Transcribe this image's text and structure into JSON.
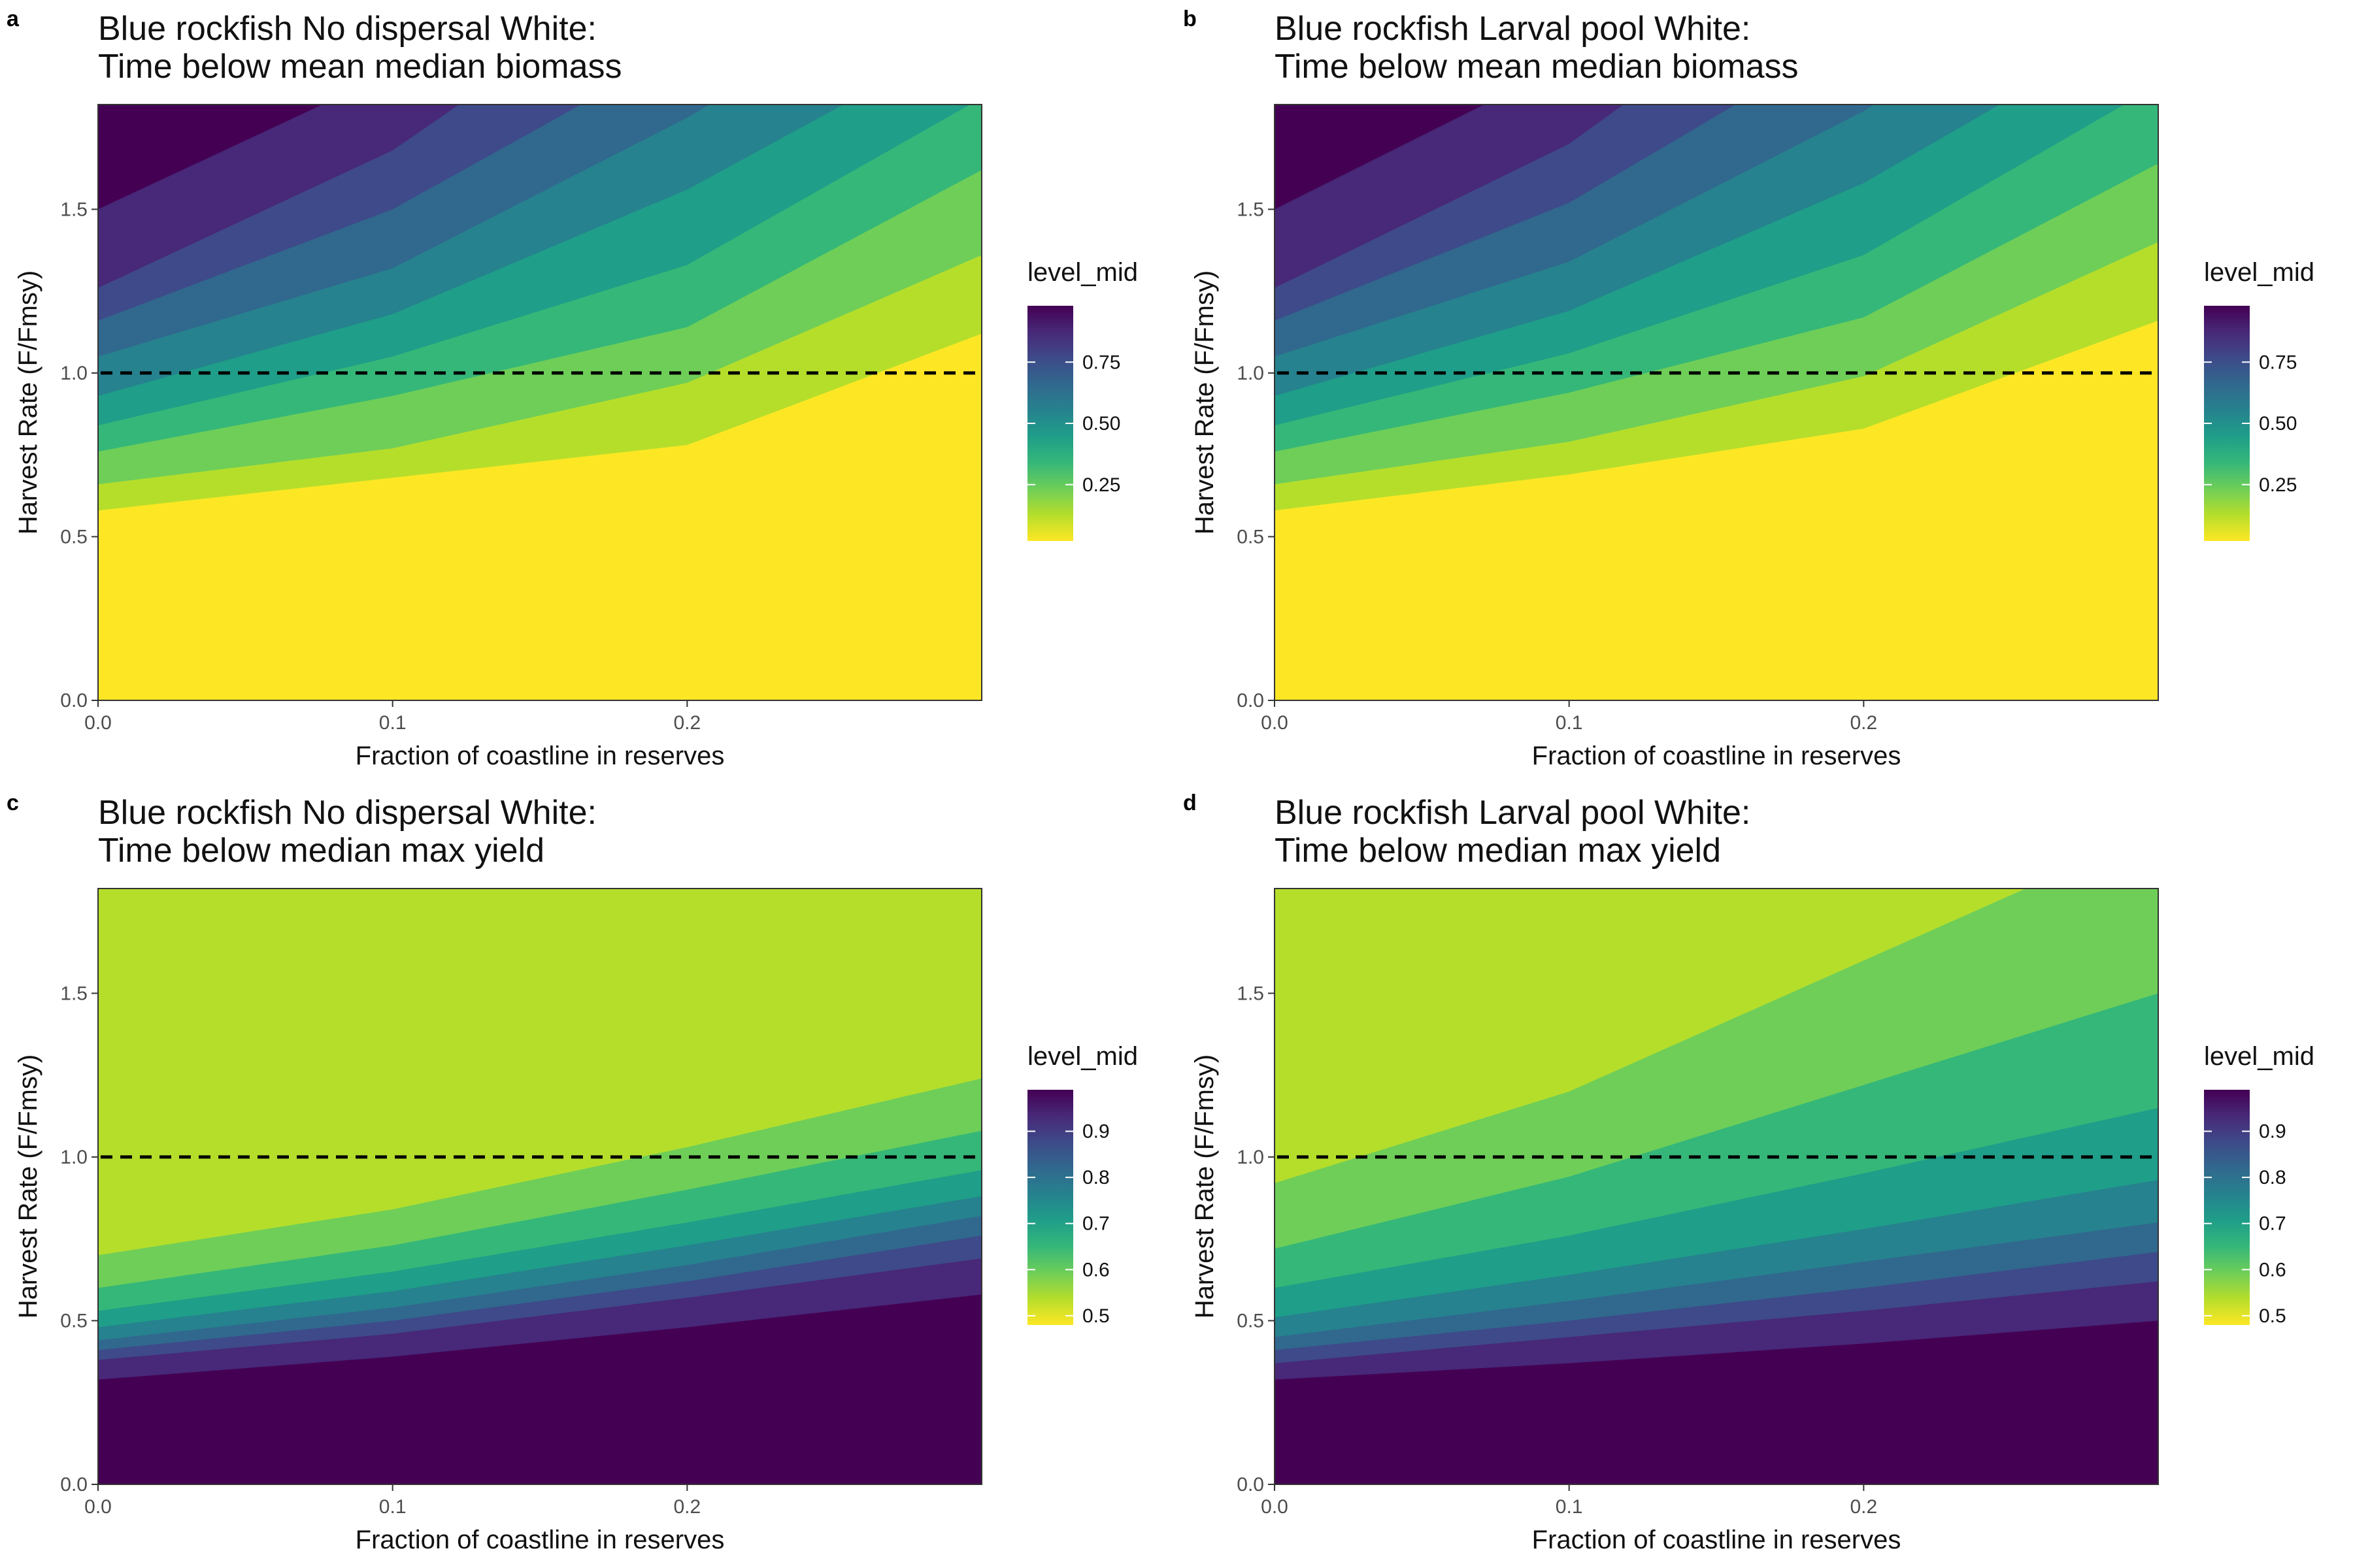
{
  "colors": {
    "viridis": [
      "#440154",
      "#482878",
      "#3e4a89",
      "#31688e",
      "#26828e",
      "#1f9e89",
      "#35b779",
      "#6ece58",
      "#b5de2b",
      "#fde725"
    ],
    "dashed_line": "#000000",
    "panel_border": "#333333"
  },
  "chart_data": [
    {
      "type": "heatmap",
      "tag": "a",
      "title": "Blue rockfish No dispersal White:",
      "subtitle": "Time below mean median biomass",
      "xlabel": "Fraction of coastline in reserves",
      "ylabel": "Harvest Rate (F/Fmsy)",
      "xlim": [
        0,
        0.3
      ],
      "ylim": [
        0,
        1.82
      ],
      "xticks": [
        0.0,
        0.1,
        0.2
      ],
      "xtick_labels": [
        "0.0",
        "0.1",
        "0.2"
      ],
      "yticks": [
        0.0,
        0.5,
        1.0,
        1.5
      ],
      "ytick_labels": [
        "0.0",
        "0.5",
        "1.0",
        "1.5"
      ],
      "reference_line": {
        "y": 1.0,
        "style": "dashed"
      },
      "legend": {
        "title": "level_mid",
        "min": 0.02,
        "max": 0.98,
        "ticks": [
          0.25,
          0.5,
          0.75
        ],
        "tick_labels": [
          "0.25",
          "0.50",
          "0.75"
        ]
      },
      "contour_boundaries": [
        {
          "x": [
            0,
            0.1,
            0.2,
            0.3
          ],
          "y": [
            0.58,
            0.68,
            0.78,
            1.12
          ]
        },
        {
          "x": [
            0,
            0.1,
            0.2,
            0.3
          ],
          "y": [
            0.66,
            0.77,
            0.97,
            1.36
          ]
        },
        {
          "x": [
            0,
            0.1,
            0.2,
            0.3
          ],
          "y": [
            0.76,
            0.93,
            1.14,
            1.62
          ]
        },
        {
          "x": [
            0,
            0.1,
            0.2,
            0.3
          ],
          "y": [
            0.84,
            1.05,
            1.33,
            1.84
          ]
        },
        {
          "x": [
            0,
            0.1,
            0.2,
            0.3
          ],
          "y": [
            0.93,
            1.18,
            1.56,
            2.05
          ]
        },
        {
          "x": [
            0,
            0.1,
            0.2,
            0.3
          ],
          "y": [
            1.05,
            1.32,
            1.78,
            2.3
          ]
        },
        {
          "x": [
            0,
            0.1,
            0.2,
            0.3
          ],
          "y": [
            1.16,
            1.5,
            2.0,
            2.6
          ]
        },
        {
          "x": [
            0,
            0.1,
            0.2,
            0.3
          ],
          "y": [
            1.26,
            1.68,
            2.3,
            2.9
          ]
        },
        {
          "x": [
            0,
            0.1,
            0.2,
            0.3
          ],
          "y": [
            1.5,
            1.92,
            2.6,
            3.2
          ]
        }
      ]
    },
    {
      "type": "heatmap",
      "tag": "b",
      "title": "Blue rockfish Larval pool White:",
      "subtitle": "Time below mean median biomass",
      "xlabel": "Fraction of coastline in reserves",
      "ylabel": "Harvest Rate (F/Fmsy)",
      "xlim": [
        0,
        0.3
      ],
      "ylim": [
        0,
        1.82
      ],
      "xticks": [
        0.0,
        0.1,
        0.2
      ],
      "xtick_labels": [
        "0.0",
        "0.1",
        "0.2"
      ],
      "yticks": [
        0.0,
        0.5,
        1.0,
        1.5
      ],
      "ytick_labels": [
        "0.0",
        "0.5",
        "1.0",
        "1.5"
      ],
      "reference_line": {
        "y": 1.0,
        "style": "dashed"
      },
      "legend": {
        "title": "level_mid",
        "min": 0.02,
        "max": 0.98,
        "ticks": [
          0.25,
          0.5,
          0.75
        ],
        "tick_labels": [
          "0.25",
          "0.50",
          "0.75"
        ]
      },
      "contour_boundaries": [
        {
          "x": [
            0,
            0.1,
            0.2,
            0.3
          ],
          "y": [
            0.58,
            0.69,
            0.83,
            1.16
          ]
        },
        {
          "x": [
            0,
            0.1,
            0.2,
            0.3
          ],
          "y": [
            0.66,
            0.79,
            0.99,
            1.4
          ]
        },
        {
          "x": [
            0,
            0.1,
            0.2,
            0.3
          ],
          "y": [
            0.76,
            0.94,
            1.17,
            1.64
          ]
        },
        {
          "x": [
            0,
            0.1,
            0.2,
            0.3
          ],
          "y": [
            0.84,
            1.06,
            1.36,
            1.88
          ]
        },
        {
          "x": [
            0,
            0.1,
            0.2,
            0.3
          ],
          "y": [
            0.93,
            1.19,
            1.58,
            2.1
          ]
        },
        {
          "x": [
            0,
            0.1,
            0.2,
            0.3
          ],
          "y": [
            1.05,
            1.34,
            1.8,
            2.35
          ]
        },
        {
          "x": [
            0,
            0.1,
            0.2,
            0.3
          ],
          "y": [
            1.16,
            1.52,
            2.05,
            2.65
          ]
        },
        {
          "x": [
            0,
            0.1,
            0.2,
            0.3
          ],
          "y": [
            1.26,
            1.7,
            2.35,
            2.95
          ]
        },
        {
          "x": [
            0,
            0.1,
            0.2,
            0.3
          ],
          "y": [
            1.5,
            1.95,
            2.65,
            3.25
          ]
        }
      ]
    },
    {
      "type": "heatmap",
      "tag": "c",
      "title": "Blue rockfish No dispersal White:",
      "subtitle": "Time below median max yield",
      "xlabel": "Fraction of coastline in reserves",
      "ylabel": "Harvest Rate (F/Fmsy)",
      "xlim": [
        0,
        0.3
      ],
      "ylim": [
        0,
        1.82
      ],
      "xticks": [
        0.0,
        0.1,
        0.2
      ],
      "xtick_labels": [
        "0.0",
        "0.1",
        "0.2"
      ],
      "yticks": [
        0.0,
        0.5,
        1.0,
        1.5
      ],
      "ytick_labels": [
        "0.0",
        "0.5",
        "1.0",
        "1.5"
      ],
      "reference_line": {
        "y": 1.0,
        "style": "dashed"
      },
      "legend": {
        "title": "level_mid",
        "min": 0.48,
        "max": 0.99,
        "ticks": [
          0.5,
          0.6,
          0.7,
          0.8,
          0.9
        ],
        "tick_labels": [
          "0.5",
          "0.6",
          "0.7",
          "0.8",
          "0.9"
        ]
      },
      "contour_boundaries": [
        {
          "x": [
            0,
            0.1,
            0.2,
            0.3
          ],
          "y": [
            0.32,
            0.39,
            0.48,
            0.58
          ]
        },
        {
          "x": [
            0,
            0.1,
            0.2,
            0.3
          ],
          "y": [
            0.38,
            0.46,
            0.57,
            0.69
          ]
        },
        {
          "x": [
            0,
            0.1,
            0.2,
            0.3
          ],
          "y": [
            0.41,
            0.5,
            0.62,
            0.76
          ]
        },
        {
          "x": [
            0,
            0.1,
            0.2,
            0.3
          ],
          "y": [
            0.44,
            0.54,
            0.67,
            0.82
          ]
        },
        {
          "x": [
            0,
            0.1,
            0.2,
            0.3
          ],
          "y": [
            0.48,
            0.59,
            0.73,
            0.88
          ]
        },
        {
          "x": [
            0,
            0.1,
            0.2,
            0.3
          ],
          "y": [
            0.53,
            0.65,
            0.8,
            0.96
          ]
        },
        {
          "x": [
            0,
            0.1,
            0.2,
            0.3
          ],
          "y": [
            0.6,
            0.73,
            0.9,
            1.08
          ]
        },
        {
          "x": [
            0,
            0.1,
            0.2,
            0.3
          ],
          "y": [
            0.7,
            0.84,
            1.03,
            1.24
          ]
        }
      ]
    },
    {
      "type": "heatmap",
      "tag": "d",
      "title": "Blue rockfish Larval pool White:",
      "subtitle": "Time below median max yield",
      "xlabel": "Fraction of coastline in reserves",
      "ylabel": "Harvest Rate (F/Fmsy)",
      "xlim": [
        0,
        0.3
      ],
      "ylim": [
        0,
        1.82
      ],
      "xticks": [
        0.0,
        0.1,
        0.2
      ],
      "xtick_labels": [
        "0.0",
        "0.1",
        "0.2"
      ],
      "yticks": [
        0.0,
        0.5,
        1.0,
        1.5
      ],
      "ytick_labels": [
        "0.0",
        "0.5",
        "1.0",
        "1.5"
      ],
      "reference_line": {
        "y": 1.0,
        "style": "dashed"
      },
      "legend": {
        "title": "level_mid",
        "min": 0.48,
        "max": 0.99,
        "ticks": [
          0.5,
          0.6,
          0.7,
          0.8,
          0.9
        ],
        "tick_labels": [
          "0.5",
          "0.6",
          "0.7",
          "0.8",
          "0.9"
        ]
      },
      "contour_boundaries": [
        {
          "x": [
            0,
            0.1,
            0.2,
            0.3
          ],
          "y": [
            0.32,
            0.37,
            0.43,
            0.5
          ]
        },
        {
          "x": [
            0,
            0.1,
            0.2,
            0.3
          ],
          "y": [
            0.37,
            0.45,
            0.53,
            0.62
          ]
        },
        {
          "x": [
            0,
            0.1,
            0.2,
            0.3
          ],
          "y": [
            0.41,
            0.5,
            0.6,
            0.71
          ]
        },
        {
          "x": [
            0,
            0.1,
            0.2,
            0.3
          ],
          "y": [
            0.45,
            0.56,
            0.68,
            0.8
          ]
        },
        {
          "x": [
            0,
            0.1,
            0.2,
            0.3
          ],
          "y": [
            0.51,
            0.64,
            0.78,
            0.93
          ]
        },
        {
          "x": [
            0,
            0.1,
            0.2,
            0.3
          ],
          "y": [
            0.6,
            0.76,
            0.95,
            1.15
          ]
        },
        {
          "x": [
            0,
            0.1,
            0.2,
            0.3
          ],
          "y": [
            0.72,
            0.94,
            1.22,
            1.5
          ]
        },
        {
          "x": [
            0,
            0.1,
            0.2,
            0.3
          ],
          "y": [
            0.92,
            1.2,
            1.6,
            2.0
          ]
        }
      ]
    }
  ]
}
